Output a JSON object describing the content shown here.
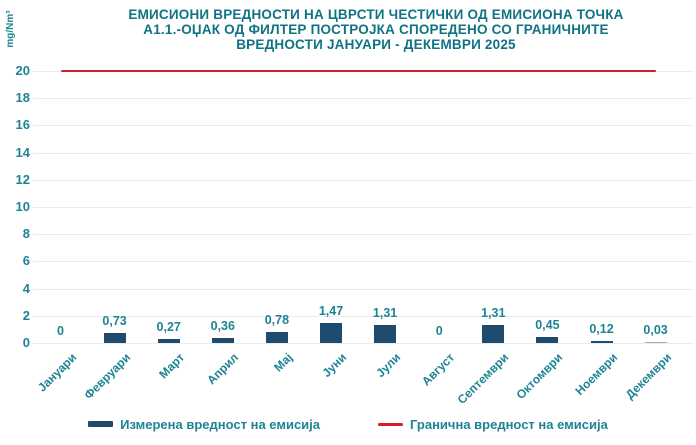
{
  "title": {
    "lines": [
      "ЕМИСИОНИ ВРЕДНОСТИ НА ЦВРСТИ ЧЕСТИЧКИ ОД ЕМИСИОНА ТОЧКА",
      "А1.1.-ОЏАК ОД ФИЛТЕР ПОСТРОЈКА СПОРЕДЕНО СО ГРАНИЧНИТЕ",
      "ВРЕДНОСТИ ЈАНУАРИ - ДЕКЕМВРИ 2025"
    ]
  },
  "chart_data": {
    "type": "bar",
    "title": "ЕМИСИОНИ ВРЕДНОСТИ НА ЦВРСТИ ЧЕСТИЧКИ ОД ЕМИСИОНА ТОЧКА А1.1.-ОЏАК ОД ФИЛТЕР ПОСТРОЈКА СПОРЕДЕНО СО ГРАНИЧНИТЕ ВРЕДНОСТИ ЈАНУАРИ - ДЕКЕМВРИ 2025",
    "xlabel": "",
    "ylabel": "mg/Nm³",
    "ylim": [
      0,
      20
    ],
    "ytick_step": 2,
    "grid": true,
    "legend_position": "bottom",
    "categories": [
      "Јануари",
      "Февруари",
      "Март",
      "Април",
      "Мај",
      "Јуни",
      "Јули",
      "Август",
      "Септември",
      "Октомври",
      "Ноември",
      "Декември"
    ],
    "series": [
      {
        "name": "Измерена вредност на емисија",
        "type": "bar",
        "values": [
          0,
          0.73,
          0.27,
          0.36,
          0.78,
          1.47,
          1.31,
          0,
          1.31,
          0.45,
          0.12,
          0.03
        ],
        "value_labels": [
          "0",
          "0,73",
          "0,27",
          "0,36",
          "0,78",
          "1,47",
          "1,31",
          "0",
          "1,31",
          "0,45",
          "0,12",
          "0,03"
        ]
      },
      {
        "name": "Гранична вредност на емисија",
        "type": "line",
        "values": [
          20,
          20,
          20,
          20,
          20,
          20,
          20,
          20,
          20,
          20,
          20,
          20
        ]
      }
    ]
  },
  "colors": {
    "title_text": "#0f7383",
    "axis_text": "#1e8495",
    "bar": "#1f4b6e",
    "limit_line": "#cf2128",
    "gridline": "#e8edf0",
    "background": "#ffffff"
  }
}
